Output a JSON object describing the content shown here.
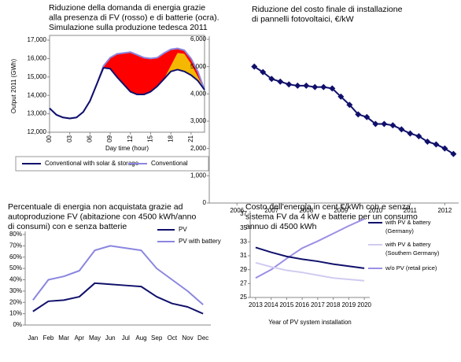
{
  "chart_data": [
    {
      "type": "area",
      "title": [
        "Riduzione della domanda di energia grazie",
        "alla presenza di FV (rosso) e di batterie (ocra).",
        "Simulazione sulla produzione tedesca 2011"
      ],
      "y_label": "Output 2011 (GWh)",
      "x_label": "Day time (hour)",
      "x": [
        0,
        1,
        2,
        3,
        4,
        5,
        6,
        7,
        8,
        9,
        10,
        11,
        12,
        13,
        14,
        15,
        16,
        17,
        18,
        19,
        20,
        21,
        22,
        23
      ],
      "xlim": [
        0,
        23
      ],
      "xticks": [
        {
          "value": 0,
          "label": "00"
        },
        {
          "value": 3,
          "label": "03"
        },
        {
          "value": 6,
          "label": "06"
        },
        {
          "value": 9,
          "label": "09"
        },
        12,
        15,
        18,
        21
      ],
      "ylim": [
        12000,
        17000
      ],
      "yticks": [
        {
          "value": 12000,
          "label": "12,000"
        },
        {
          "value": 13000,
          "label": "13,000"
        },
        {
          "value": 14000,
          "label": "14,000"
        },
        {
          "value": 15000,
          "label": "15,000"
        },
        {
          "value": 16000,
          "label": "16,000"
        },
        {
          "value": 17000,
          "label": "17,000"
        }
      ],
      "series": [
        {
          "name": "Conventional with solar & storage",
          "color": "#10106b",
          "values": [
            13300,
            12950,
            12800,
            12750,
            12800,
            13100,
            13700,
            14600,
            15500,
            15450,
            15000,
            14600,
            14200,
            14050,
            14050,
            14200,
            14500,
            14900,
            15300,
            15400,
            15300,
            15100,
            14800,
            14300
          ]
        },
        {
          "name": "Conventional",
          "color": "#8b86e0",
          "values": [
            13300,
            12950,
            12800,
            12750,
            12800,
            13100,
            13700,
            14600,
            15600,
            16050,
            16250,
            16300,
            16350,
            16200,
            16050,
            16000,
            16050,
            16300,
            16500,
            16550,
            16450,
            16000,
            15300,
            14300
          ]
        },
        {
          "values": [
            13300,
            12950,
            12800,
            12750,
            12800,
            13100,
            13700,
            14600,
            15500,
            15450,
            15000,
            14600,
            14200,
            14050,
            14050,
            14200,
            14500,
            14900,
            15600,
            16300,
            16250,
            15700,
            15000,
            14300
          ]
        }
      ],
      "areas": [
        {
          "from": 1,
          "to": 2,
          "color": "#ff0000"
        },
        {
          "from": 2,
          "to": 0,
          "color": "#f5b800"
        }
      ],
      "legend": "bottom"
    },
    {
      "type": "line",
      "title": [
        "Riduzione del costo finale di installazione",
        "di pannelli fotovoltaici, €/kW"
      ],
      "x": [
        2006.5,
        2006.75,
        2007,
        2007.25,
        2007.5,
        2007.75,
        2008,
        2008.25,
        2008.5,
        2008.75,
        2009,
        2009.25,
        2009.5,
        2009.75,
        2010,
        2010.25,
        2010.5,
        2010.75,
        2011,
        2011.25,
        2011.5,
        2011.75,
        2012,
        2012.25
      ],
      "values": [
        5000,
        4800,
        4550,
        4450,
        4350,
        4300,
        4300,
        4250,
        4250,
        4200,
        3900,
        3600,
        3250,
        3150,
        2900,
        2900,
        2850,
        2700,
        2550,
        2450,
        2250,
        2150,
        2000,
        1800
      ],
      "color": "#10106b",
      "marker": "diamond",
      "xlim": [
        2005.2,
        2012.4
      ],
      "xticks": [
        2006,
        2007,
        2008,
        2009,
        2010,
        2011,
        2012
      ],
      "ylim": [
        0,
        6000
      ],
      "yticks": [
        0,
        {
          "value": 1000,
          "label": "1,000"
        },
        {
          "value": 2000,
          "label": "2,000"
        },
        {
          "value": 3000,
          "label": "3,000"
        },
        {
          "value": 4000,
          "label": "4,000"
        },
        {
          "value": 5000,
          "label": "5,000"
        },
        {
          "value": 6000,
          "label": "6,000"
        }
      ]
    },
    {
      "type": "line",
      "title": [
        "Percentuale di energia non acquistata grazie ad",
        "autoproduzione FV (abitazione con 4500 kWh/anno",
        "di consumi) con e senza batterie"
      ],
      "categories": [
        "Jan",
        "Feb",
        "Mar",
        "Apr",
        "May",
        "Jun",
        "Jul",
        "Aug",
        "Sep",
        "Oct",
        "Nov",
        "Dec"
      ],
      "ylim": [
        0,
        80
      ],
      "yticks": [
        {
          "value": 0,
          "label": "0%"
        },
        {
          "value": 10,
          "label": "10%"
        },
        {
          "value": 20,
          "label": "20%"
        },
        {
          "value": 30,
          "label": "30%"
        },
        {
          "value": 40,
          "label": "40%"
        },
        {
          "value": 50,
          "label": "50%"
        },
        {
          "value": 60,
          "label": "60%"
        },
        {
          "value": 70,
          "label": "70%"
        },
        {
          "value": 80,
          "label": "80%"
        }
      ],
      "series": [
        {
          "name": "PV",
          "color": "#10106b",
          "values": [
            12,
            21,
            22,
            25,
            37,
            36,
            35,
            34,
            25,
            19,
            16,
            10
          ]
        },
        {
          "name": "PV with battery",
          "color": "#8b86e0",
          "values": [
            22,
            40,
            43,
            48,
            66,
            70,
            68,
            66,
            50,
            40,
            30,
            18
          ]
        }
      ],
      "legend": "top-right"
    },
    {
      "type": "line",
      "title": [
        "Costo dell'energia in cent €/kWh con e senza",
        "sistema FV da 4 kW e batterie per un consumo",
        "annuo di 4500 kWh"
      ],
      "x_label": "Year of PV system installation",
      "x": [
        2013,
        2014,
        2015,
        2016,
        2017,
        2018,
        2019,
        2020
      ],
      "xlim": [
        2012.65,
        2020.35
      ],
      "xticks": [
        2013,
        2014,
        2015,
        2016,
        2017,
        2018,
        2019,
        2020
      ],
      "ylim": [
        25,
        37
      ],
      "yticks": [
        25,
        27,
        29,
        31,
        33,
        35,
        37
      ],
      "series": [
        {
          "name": "with PV & battery (Germany)",
          "color": "#10106b",
          "values": [
            32.2,
            31.5,
            30.9,
            30.5,
            30.2,
            29.8,
            29.5,
            29.2
          ]
        },
        {
          "name": "with PV & battery (Southern Germany)",
          "color": "#d0ccf0",
          "values": [
            30.0,
            29.4,
            28.9,
            28.6,
            28.2,
            27.8,
            27.6,
            27.4
          ]
        },
        {
          "name": "w/o PV (retail price)",
          "color": "#9b8fe6",
          "values": [
            27.8,
            29.0,
            30.6,
            32.1,
            33.1,
            34.2,
            35.3,
            36.3
          ]
        }
      ],
      "legend": "right"
    }
  ]
}
